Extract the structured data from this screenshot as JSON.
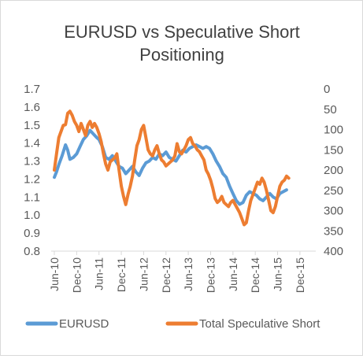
{
  "chart_data": {
    "type": "line",
    "title": [
      "EURUSD vs Speculative Short",
      "Positioning"
    ],
    "x_labels": [
      "Jun-10",
      "Dec-10",
      "Jun-11",
      "Dec-11",
      "Jun-12",
      "Dec-12",
      "Jun-13",
      "Dec-13",
      "Jun-14",
      "Dec-14",
      "Jun-15",
      "Dec-15"
    ],
    "y_left": {
      "min": 0.8,
      "max": 1.7,
      "step": 0.1,
      "ticks": [
        "1.7",
        "1.6",
        "1.5",
        "1.4",
        "1.3",
        "1.2",
        "1.1",
        "1.0",
        "0.9",
        "0.8"
      ]
    },
    "y_right": {
      "min": 0,
      "max": 400,
      "step": 50,
      "reversed": true,
      "ticks": [
        "0",
        "50",
        "100",
        "150",
        "200",
        "250",
        "300",
        "350",
        "400"
      ]
    },
    "grid": false,
    "legend_position": "bottom",
    "series": [
      {
        "name": "EURUSD",
        "axis": "left",
        "color": "#5b9bd5",
        "points": [
          [
            0.0,
            1.21
          ],
          [
            0.1,
            1.24
          ],
          [
            0.2,
            1.28
          ],
          [
            0.35,
            1.33
          ],
          [
            0.5,
            1.39
          ],
          [
            0.6,
            1.36
          ],
          [
            0.7,
            1.31
          ],
          [
            0.85,
            1.32
          ],
          [
            1.0,
            1.34
          ],
          [
            1.15,
            1.38
          ],
          [
            1.3,
            1.42
          ],
          [
            1.45,
            1.44
          ],
          [
            1.6,
            1.47
          ],
          [
            1.75,
            1.45
          ],
          [
            1.9,
            1.43
          ],
          [
            2.0,
            1.42
          ],
          [
            2.15,
            1.38
          ],
          [
            2.3,
            1.32
          ],
          [
            2.45,
            1.31
          ],
          [
            2.6,
            1.33
          ],
          [
            2.75,
            1.3
          ],
          [
            2.9,
            1.27
          ],
          [
            3.05,
            1.26
          ],
          [
            3.2,
            1.23
          ],
          [
            3.35,
            1.25
          ],
          [
            3.5,
            1.27
          ],
          [
            3.65,
            1.24
          ],
          [
            3.8,
            1.22
          ],
          [
            3.95,
            1.26
          ],
          [
            4.1,
            1.29
          ],
          [
            4.25,
            1.3
          ],
          [
            4.4,
            1.32
          ],
          [
            4.55,
            1.31
          ],
          [
            4.7,
            1.34
          ],
          [
            4.85,
            1.33
          ],
          [
            5.0,
            1.35
          ],
          [
            5.15,
            1.32
          ],
          [
            5.3,
            1.31
          ],
          [
            5.45,
            1.3
          ],
          [
            5.6,
            1.33
          ],
          [
            5.75,
            1.36
          ],
          [
            5.9,
            1.35
          ],
          [
            6.05,
            1.37
          ],
          [
            6.2,
            1.38
          ],
          [
            6.35,
            1.39
          ],
          [
            6.5,
            1.38
          ],
          [
            6.65,
            1.37
          ],
          [
            6.8,
            1.38
          ],
          [
            6.95,
            1.37
          ],
          [
            7.1,
            1.34
          ],
          [
            7.25,
            1.3
          ],
          [
            7.4,
            1.27
          ],
          [
            7.55,
            1.23
          ],
          [
            7.7,
            1.21
          ],
          [
            7.85,
            1.16
          ],
          [
            8.0,
            1.12
          ],
          [
            8.15,
            1.08
          ],
          [
            8.3,
            1.06
          ],
          [
            8.45,
            1.07
          ],
          [
            8.6,
            1.11
          ],
          [
            8.75,
            1.13
          ],
          [
            8.9,
            1.12
          ],
          [
            9.05,
            1.11
          ],
          [
            9.2,
            1.09
          ],
          [
            9.35,
            1.08
          ],
          [
            9.5,
            1.1
          ],
          [
            9.65,
            1.12
          ],
          [
            9.8,
            1.1
          ],
          [
            9.95,
            1.09
          ],
          [
            10.1,
            1.12
          ],
          [
            10.25,
            1.13
          ],
          [
            10.4,
            1.14
          ]
        ]
      },
      {
        "name": "Total Speculative Short",
        "axis": "right",
        "color": "#ed7d31",
        "points": [
          [
            0.0,
            200
          ],
          [
            0.1,
            160
          ],
          [
            0.2,
            120
          ],
          [
            0.3,
            105
          ],
          [
            0.4,
            90
          ],
          [
            0.5,
            88
          ],
          [
            0.6,
            60
          ],
          [
            0.7,
            55
          ],
          [
            0.8,
            65
          ],
          [
            0.9,
            80
          ],
          [
            1.0,
            90
          ],
          [
            1.1,
            105
          ],
          [
            1.2,
            85
          ],
          [
            1.3,
            100
          ],
          [
            1.4,
            115
          ],
          [
            1.5,
            90
          ],
          [
            1.6,
            80
          ],
          [
            1.7,
            95
          ],
          [
            1.8,
            85
          ],
          [
            1.9,
            95
          ],
          [
            2.0,
            110
          ],
          [
            2.1,
            130
          ],
          [
            2.2,
            160
          ],
          [
            2.3,
            185
          ],
          [
            2.4,
            200
          ],
          [
            2.5,
            180
          ],
          [
            2.6,
            175
          ],
          [
            2.7,
            170
          ],
          [
            2.8,
            160
          ],
          [
            2.9,
            200
          ],
          [
            3.0,
            240
          ],
          [
            3.1,
            265
          ],
          [
            3.2,
            285
          ],
          [
            3.3,
            260
          ],
          [
            3.4,
            240
          ],
          [
            3.5,
            215
          ],
          [
            3.6,
            175
          ],
          [
            3.7,
            140
          ],
          [
            3.8,
            125
          ],
          [
            3.9,
            100
          ],
          [
            4.0,
            90
          ],
          [
            4.1,
            120
          ],
          [
            4.2,
            150
          ],
          [
            4.3,
            160
          ],
          [
            4.4,
            165
          ],
          [
            4.5,
            150
          ],
          [
            4.6,
            140
          ],
          [
            4.7,
            160
          ],
          [
            4.8,
            175
          ],
          [
            4.9,
            180
          ],
          [
            5.0,
            190
          ],
          [
            5.1,
            185
          ],
          [
            5.2,
            180
          ],
          [
            5.3,
            175
          ],
          [
            5.4,
            165
          ],
          [
            5.5,
            135
          ],
          [
            5.6,
            155
          ],
          [
            5.7,
            160
          ],
          [
            5.8,
            150
          ],
          [
            5.9,
            140
          ],
          [
            6.0,
            125
          ],
          [
            6.1,
            120
          ],
          [
            6.2,
            135
          ],
          [
            6.3,
            140
          ],
          [
            6.4,
            150
          ],
          [
            6.5,
            155
          ],
          [
            6.6,
            165
          ],
          [
            6.7,
            175
          ],
          [
            6.8,
            200
          ],
          [
            6.9,
            210
          ],
          [
            7.0,
            225
          ],
          [
            7.1,
            245
          ],
          [
            7.2,
            270
          ],
          [
            7.3,
            280
          ],
          [
            7.4,
            275
          ],
          [
            7.5,
            265
          ],
          [
            7.6,
            280
          ],
          [
            7.7,
            285
          ],
          [
            7.8,
            290
          ],
          [
            7.9,
            280
          ],
          [
            8.0,
            275
          ],
          [
            8.1,
            285
          ],
          [
            8.2,
            295
          ],
          [
            8.3,
            305
          ],
          [
            8.4,
            320
          ],
          [
            8.5,
            335
          ],
          [
            8.6,
            330
          ],
          [
            8.7,
            300
          ],
          [
            8.8,
            275
          ],
          [
            8.9,
            260
          ],
          [
            9.0,
            245
          ],
          [
            9.1,
            230
          ],
          [
            9.2,
            235
          ],
          [
            9.3,
            220
          ],
          [
            9.4,
            230
          ],
          [
            9.5,
            250
          ],
          [
            9.6,
            275
          ],
          [
            9.7,
            300
          ],
          [
            9.8,
            305
          ],
          [
            9.9,
            290
          ],
          [
            10.0,
            265
          ],
          [
            10.1,
            240
          ],
          [
            10.2,
            230
          ],
          [
            10.3,
            225
          ],
          [
            10.4,
            215
          ],
          [
            10.5,
            220
          ]
        ]
      }
    ]
  }
}
